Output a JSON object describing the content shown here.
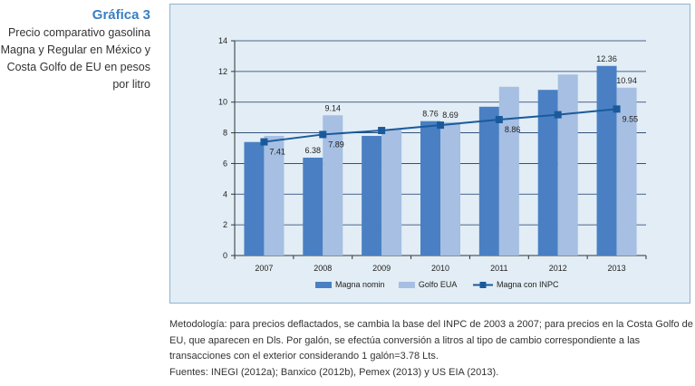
{
  "caption": {
    "title": "Gráfica 3",
    "description": "Precio comparativo gasolina Magna y Regular en México y Costa Golfo de EU en pesos por litro"
  },
  "notes": {
    "methodology": "Metodología: para precios deflactados, se cambia la base del INPC de 2003 a 2007; para precios en la Costa Golfo de EU, que aparecen en Dls. Por galón, se efectúa conversión a litros al tipo de cambio correspondiente a las transacciones con el exterior considerando 1 galón=3.78 Lts.",
    "sources": "Fuentes: INEGI (2012a); Banxico (2012b), Pemex (2013) y US EIA (2013)."
  },
  "colors": {
    "magna_nomin": "#4a80c3",
    "golfo_eua": "#a6bfe2",
    "magna_inpc": "#1a5a9c",
    "plot_bg": "#e2edf5"
  },
  "chart_data": {
    "type": "bar",
    "categories": [
      "2007",
      "2008",
      "2009",
      "2010",
      "2011",
      "2012",
      "2013"
    ],
    "ylim": [
      0,
      14
    ],
    "yticks": [
      0,
      2,
      4,
      6,
      8,
      10,
      12,
      14
    ],
    "grid": true,
    "legend_position": "bottom",
    "series": [
      {
        "name": "Magna nomin",
        "kind": "bar",
        "values": [
          7.4,
          6.38,
          7.8,
          8.76,
          9.7,
          10.8,
          12.36
        ],
        "labels": [
          "",
          "6.38",
          "",
          "8.76",
          "",
          "",
          "12.36"
        ]
      },
      {
        "name": "Golfo EUA",
        "kind": "bar",
        "values": [
          7.8,
          9.14,
          8.2,
          8.69,
          11.0,
          11.8,
          10.94
        ],
        "labels": [
          "",
          "9.14",
          "",
          "8.69",
          "",
          "",
          "10.94"
        ]
      },
      {
        "name": "Magna con INPC",
        "kind": "line",
        "values": [
          7.41,
          7.89,
          8.15,
          8.5,
          8.86,
          9.18,
          9.55
        ],
        "labels": [
          "7.41",
          "7.89",
          "",
          "",
          "8.86",
          "",
          "9.55"
        ]
      }
    ]
  }
}
